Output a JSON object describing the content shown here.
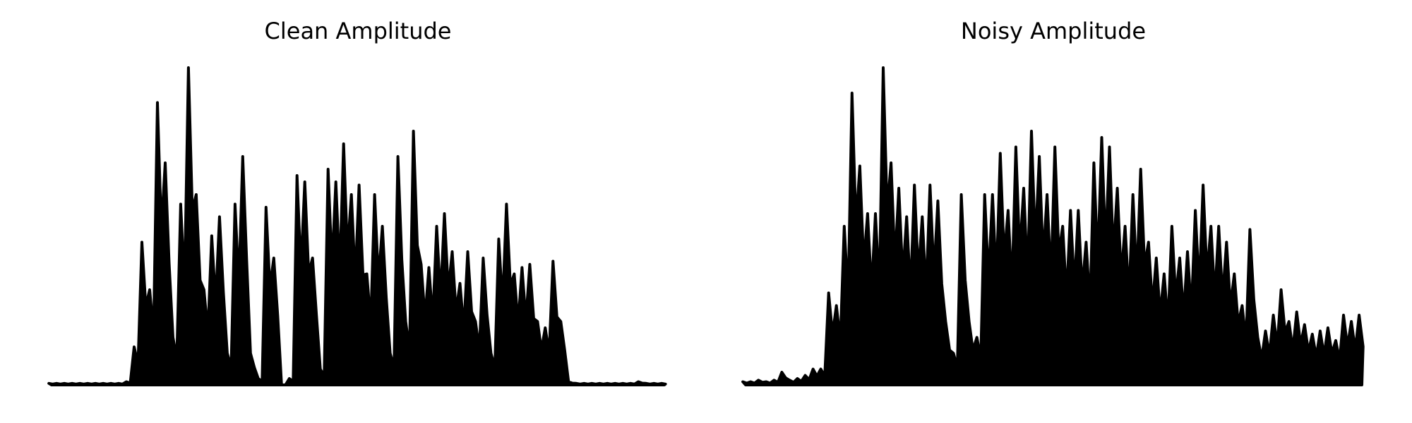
{
  "chart_data": [
    {
      "type": "line",
      "title": "Clean Amplitude",
      "color": "#000000",
      "ylim": [
        0,
        1
      ],
      "values": [
        0.005,
        0.005,
        0.005,
        0.005,
        0.005,
        0.005,
        0.005,
        0.005,
        0.005,
        0.005,
        0.01,
        0.12,
        0.45,
        0.3,
        0.89,
        0.7,
        0.15,
        0.57,
        1.0,
        0.6,
        0.3,
        0.47,
        0.53,
        0.1,
        0.57,
        0.72,
        0.1,
        0.02,
        0.56,
        0.4,
        0.0,
        0.02,
        0.66,
        0.64,
        0.4,
        0.05,
        0.68,
        0.64,
        0.76,
        0.6,
        0.63,
        0.35,
        0.6,
        0.5,
        0.1,
        0.72,
        0.2,
        0.8,
        0.38,
        0.37,
        0.5,
        0.54,
        0.42,
        0.32,
        0.42,
        0.2,
        0.4,
        0.1,
        0.46,
        0.57,
        0.35,
        0.37,
        0.38,
        0.2,
        0.18,
        0.39,
        0.2,
        0.01,
        0.005,
        0.005,
        0.005,
        0.005,
        0.005,
        0.005,
        0.005,
        0.005,
        0.01,
        0.005,
        0.005,
        0.005
      ]
    },
    {
      "type": "line",
      "title": "Noisy Amplitude",
      "color": "#000000",
      "ylim": [
        0,
        1
      ],
      "values": [
        0.01,
        0.01,
        0.015,
        0.01,
        0.015,
        0.04,
        0.015,
        0.02,
        0.03,
        0.05,
        0.05,
        0.29,
        0.25,
        0.5,
        0.92,
        0.69,
        0.54,
        0.54,
        1.0,
        0.7,
        0.62,
        0.53,
        0.63,
        0.53,
        0.63,
        0.58,
        0.2,
        0.1,
        0.6,
        0.2,
        0.15,
        0.6,
        0.6,
        0.73,
        0.55,
        0.75,
        0.62,
        0.8,
        0.72,
        0.6,
        0.75,
        0.5,
        0.55,
        0.55,
        0.45,
        0.7,
        0.78,
        0.75,
        0.62,
        0.5,
        0.6,
        0.68,
        0.45,
        0.4,
        0.35,
        0.5,
        0.4,
        0.42,
        0.55,
        0.63,
        0.5,
        0.5,
        0.45,
        0.35,
        0.25,
        0.49,
        0.15,
        0.17,
        0.22,
        0.3,
        0.2,
        0.23,
        0.19,
        0.16,
        0.17,
        0.18,
        0.14,
        0.22,
        0.2,
        0.22
      ]
    }
  ]
}
